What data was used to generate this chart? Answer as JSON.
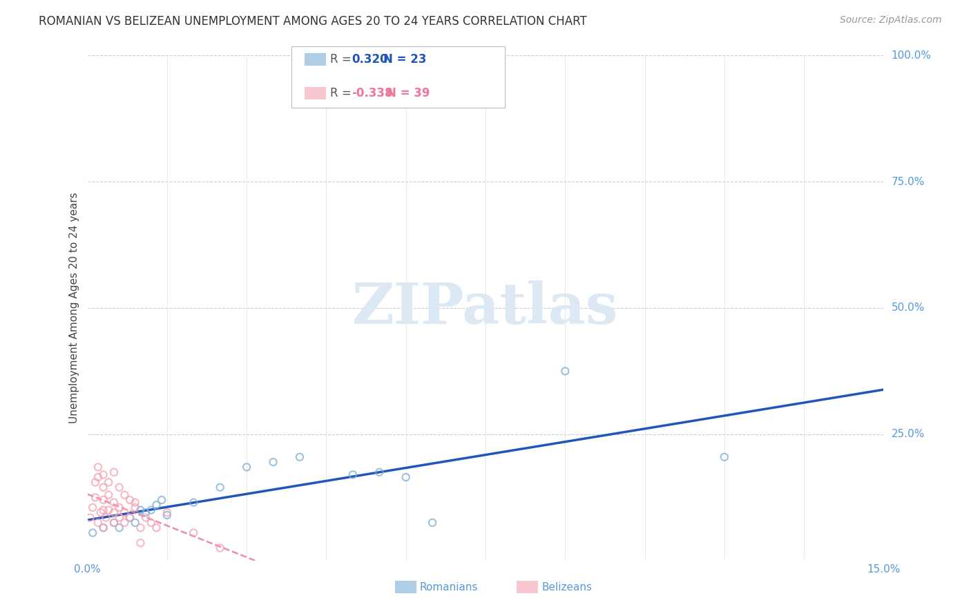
{
  "title": "ROMANIAN VS BELIZEAN UNEMPLOYMENT AMONG AGES 20 TO 24 YEARS CORRELATION CHART",
  "source": "Source: ZipAtlas.com",
  "ylabel": "Unemployment Among Ages 20 to 24 years",
  "xlim": [
    0.0,
    0.15
  ],
  "ylim": [
    0.0,
    1.0
  ],
  "xtick_labels": [
    "0.0%",
    "15.0%"
  ],
  "ytick_positions": [
    0.25,
    0.5,
    0.75,
    1.0
  ],
  "ytick_labels": [
    "25.0%",
    "50.0%",
    "75.0%",
    "100.0%"
  ],
  "grid_color": "#cccccc",
  "background_color": "#ffffff",
  "legend_r_romanian": "0.320",
  "legend_n_romanian": "23",
  "legend_r_belizean": "-0.338",
  "legend_n_belizean": "39",
  "romanian_color": "#7aadd4",
  "belizean_color": "#f4a0b0",
  "trend_romanian_color": "#2255bb",
  "trend_belizean_color": "#ee7799",
  "label_color": "#5599dd",
  "watermark_color": "#dce8f4",
  "romanian_points": [
    [
      0.001,
      0.055
    ],
    [
      0.003,
      0.065
    ],
    [
      0.005,
      0.075
    ],
    [
      0.006,
      0.065
    ],
    [
      0.008,
      0.085
    ],
    [
      0.009,
      0.075
    ],
    [
      0.01,
      0.1
    ],
    [
      0.011,
      0.095
    ],
    [
      0.012,
      0.1
    ],
    [
      0.013,
      0.11
    ],
    [
      0.014,
      0.12
    ],
    [
      0.015,
      0.09
    ],
    [
      0.02,
      0.115
    ],
    [
      0.025,
      0.145
    ],
    [
      0.03,
      0.185
    ],
    [
      0.035,
      0.195
    ],
    [
      0.04,
      0.205
    ],
    [
      0.05,
      0.17
    ],
    [
      0.055,
      0.175
    ],
    [
      0.06,
      0.165
    ],
    [
      0.065,
      0.075
    ],
    [
      0.09,
      0.375
    ],
    [
      0.12,
      0.205
    ]
  ],
  "belizean_points": [
    [
      0.0005,
      0.085
    ],
    [
      0.001,
      0.105
    ],
    [
      0.0015,
      0.125
    ],
    [
      0.0015,
      0.155
    ],
    [
      0.002,
      0.165
    ],
    [
      0.002,
      0.185
    ],
    [
      0.002,
      0.075
    ],
    [
      0.0025,
      0.095
    ],
    [
      0.003,
      0.1
    ],
    [
      0.003,
      0.12
    ],
    [
      0.003,
      0.145
    ],
    [
      0.003,
      0.17
    ],
    [
      0.003,
      0.065
    ],
    [
      0.0035,
      0.085
    ],
    [
      0.004,
      0.1
    ],
    [
      0.004,
      0.13
    ],
    [
      0.004,
      0.155
    ],
    [
      0.005,
      0.175
    ],
    [
      0.005,
      0.075
    ],
    [
      0.005,
      0.095
    ],
    [
      0.005,
      0.115
    ],
    [
      0.006,
      0.145
    ],
    [
      0.006,
      0.085
    ],
    [
      0.006,
      0.105
    ],
    [
      0.007,
      0.13
    ],
    [
      0.007,
      0.075
    ],
    [
      0.007,
      0.095
    ],
    [
      0.008,
      0.12
    ],
    [
      0.008,
      0.085
    ],
    [
      0.009,
      0.115
    ],
    [
      0.009,
      0.105
    ],
    [
      0.01,
      0.035
    ],
    [
      0.01,
      0.065
    ],
    [
      0.011,
      0.085
    ],
    [
      0.012,
      0.075
    ],
    [
      0.013,
      0.065
    ],
    [
      0.015,
      0.095
    ],
    [
      0.02,
      0.055
    ],
    [
      0.025,
      0.025
    ]
  ]
}
